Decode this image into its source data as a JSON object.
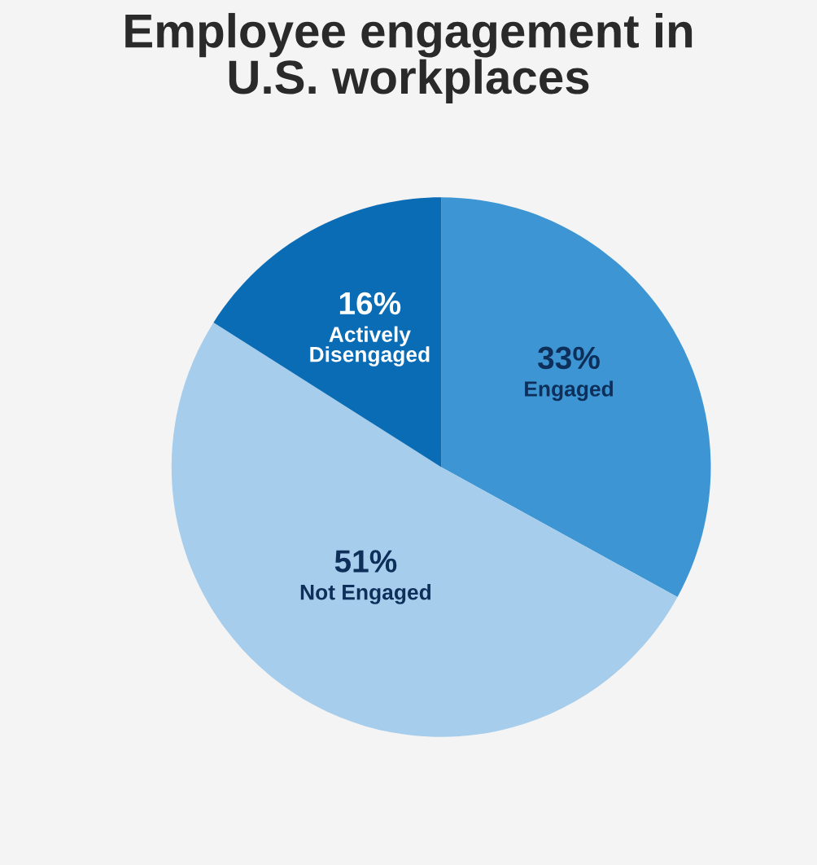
{
  "chart_data": {
    "type": "pie",
    "title": "Employee engagement in\nU.S. workplaces",
    "categories": [
      "Engaged",
      "Not Engaged",
      "Actively\nDisengaged"
    ],
    "values": [
      33,
      51,
      16
    ],
    "value_labels": [
      "33%",
      "51%",
      "16%"
    ],
    "colors": [
      "#3d96d3",
      "#a7cdec",
      "#0b6cb6"
    ],
    "legend": false
  }
}
